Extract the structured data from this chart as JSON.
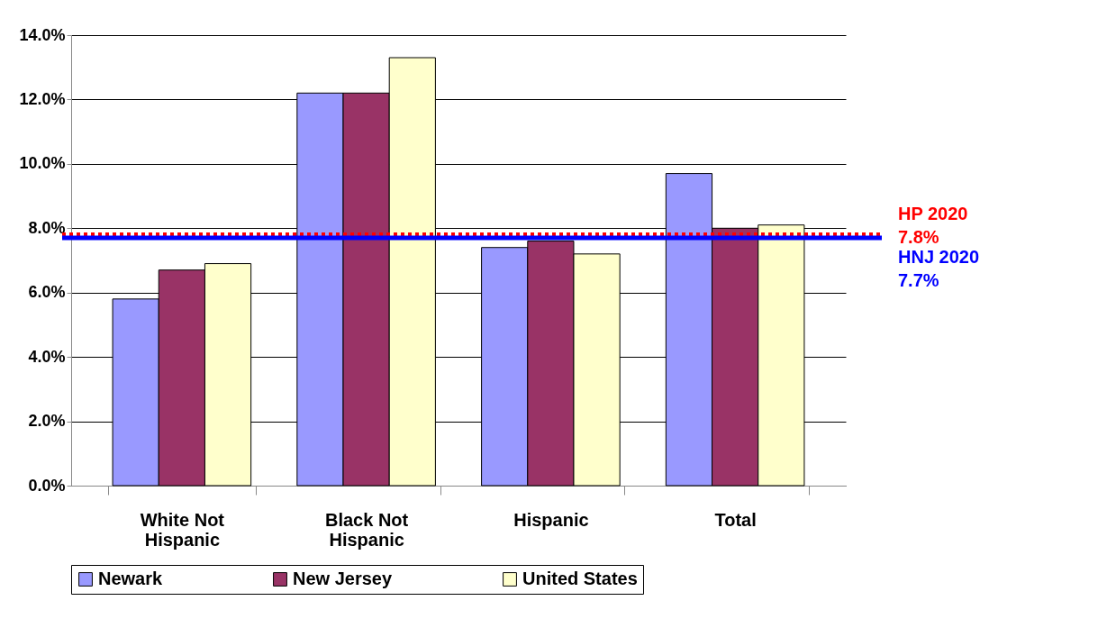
{
  "chart_data": {
    "type": "bar",
    "categories": [
      "White Not Hispanic",
      "Black Not Hispanic",
      "Hispanic",
      "Total"
    ],
    "series": [
      {
        "name": "Newark",
        "color": "#9999ff",
        "values": [
          5.8,
          12.2,
          7.4,
          9.7
        ]
      },
      {
        "name": "New Jersey",
        "color": "#993366",
        "values": [
          6.7,
          12.2,
          7.6,
          8.0
        ]
      },
      {
        "name": "United States",
        "color": "#ffffcc",
        "values": [
          6.9,
          13.3,
          7.2,
          8.1
        ]
      }
    ],
    "ylim": [
      0,
      14
    ],
    "yticks": [
      {
        "value": 0,
        "label": "0.0%"
      },
      {
        "value": 2,
        "label": "2.0%"
      },
      {
        "value": 4,
        "label": "4.0%"
      },
      {
        "value": 6,
        "label": "6.0%"
      },
      {
        "value": 8,
        "label": "8.0%"
      },
      {
        "value": 10,
        "label": "10.0%"
      },
      {
        "value": 12,
        "label": "12.0%"
      },
      {
        "value": 14,
        "label": "14.0%"
      }
    ],
    "ref_lines": [
      {
        "axis": "y",
        "value": 7.8,
        "label": "HP 2020 7.8%",
        "color": "#ff0000",
        "line_style": "dotted"
      },
      {
        "axis": "y",
        "value": 7.7,
        "label": "HNJ 2020 7.7%",
        "color": "#0000ff",
        "line_style": "solid"
      }
    ],
    "grid": "y",
    "legend": "bottom"
  }
}
